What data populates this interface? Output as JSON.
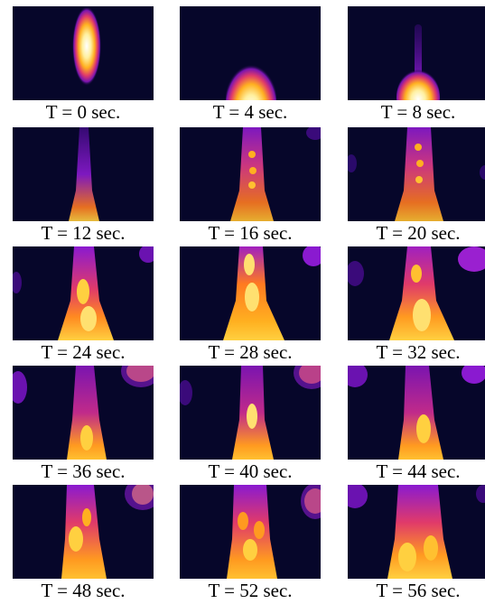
{
  "panels": [
    {
      "caption": "T = 0 sec."
    },
    {
      "caption": "T = 4 sec."
    },
    {
      "caption": "T = 8 sec."
    },
    {
      "caption": "T = 12 sec."
    },
    {
      "caption": "T = 16 sec."
    },
    {
      "caption": "T = 20 sec."
    },
    {
      "caption": "T = 24 sec."
    },
    {
      "caption": "T = 28 sec."
    },
    {
      "caption": "T = 32 sec."
    },
    {
      "caption": "T = 36 sec."
    },
    {
      "caption": "T = 40 sec."
    },
    {
      "caption": "T = 44 sec."
    },
    {
      "caption": "T = 48 sec."
    },
    {
      "caption": "T = 52 sec."
    },
    {
      "caption": "T = 56 sec."
    }
  ],
  "colors": {
    "background": "#06062a",
    "colormap": [
      "#06062a",
      "#3a0a7a",
      "#8a1ad0",
      "#e03a8a",
      "#ff7a20",
      "#ffc030",
      "#fff4c0"
    ]
  }
}
